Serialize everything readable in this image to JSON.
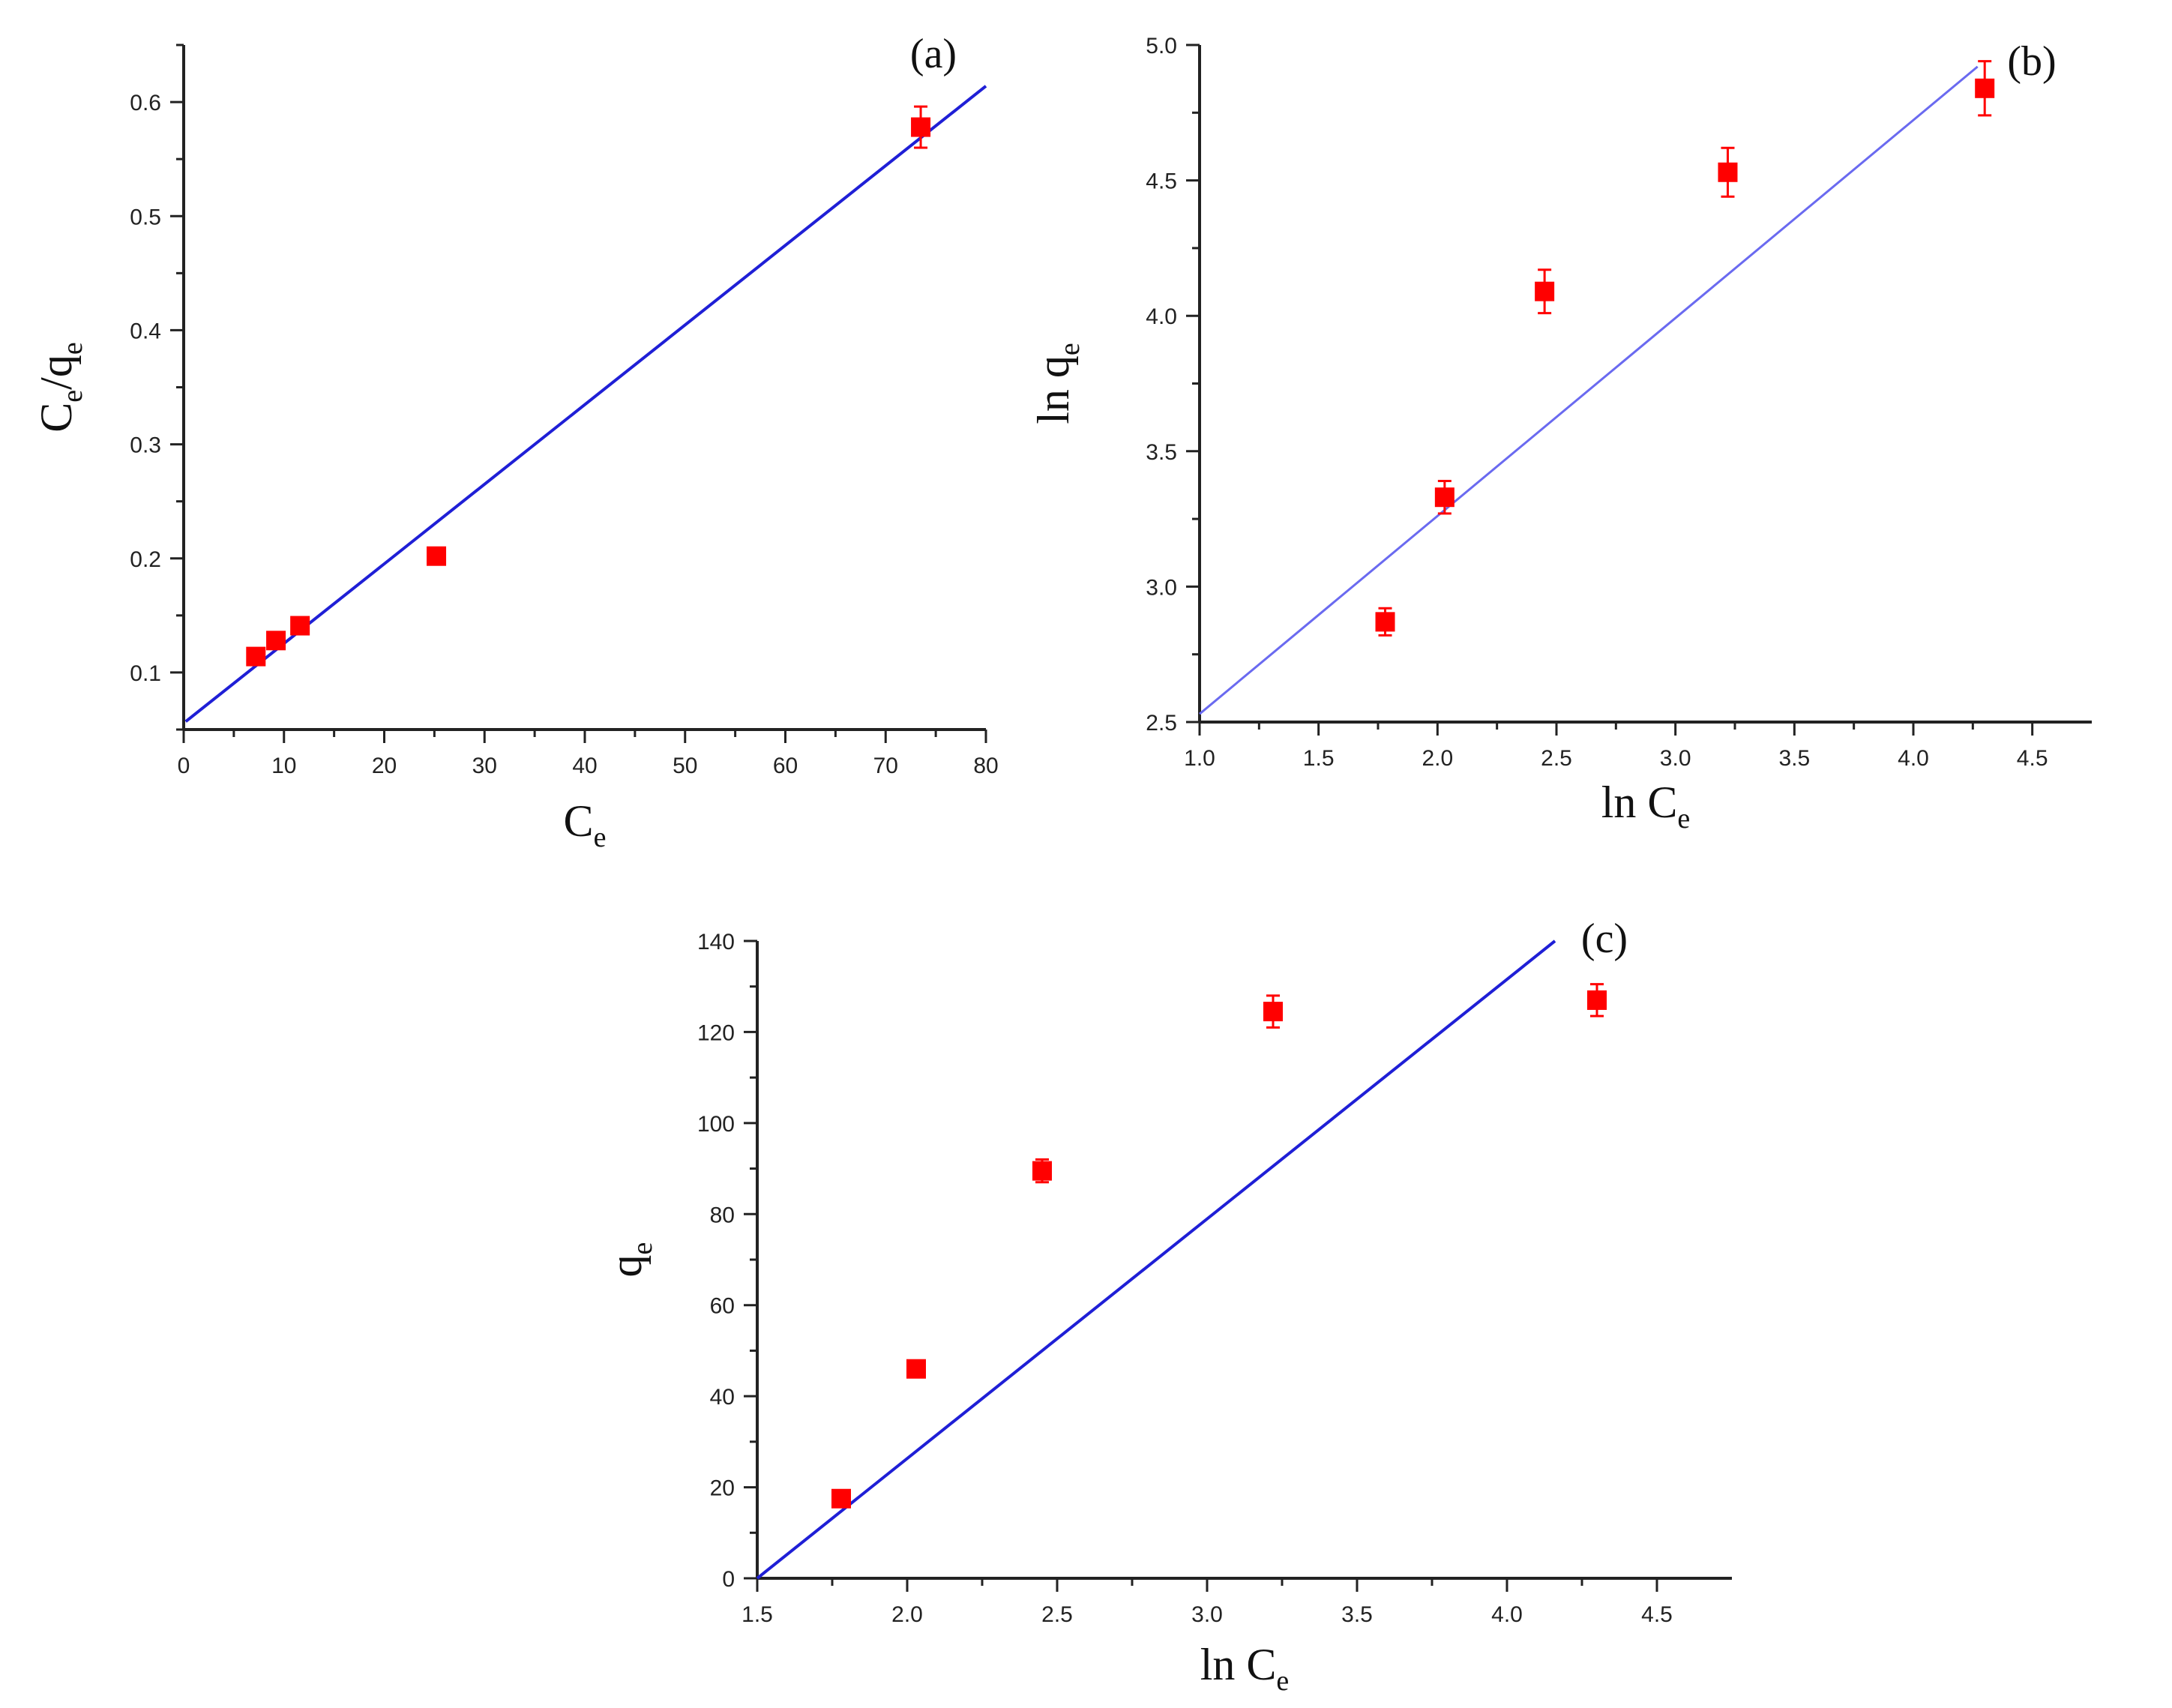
{
  "chart_data": [
    {
      "type": "scatter",
      "panel_label": "(a)",
      "xlabel": {
        "main": "C",
        "sub": "e"
      },
      "ylabel": {
        "parts": [
          {
            "t": "C",
            "sub": "e"
          },
          {
            "t": "/q",
            "sub": "e"
          }
        ]
      },
      "xlim": [
        0,
        80
      ],
      "ylim": [
        0.05,
        0.65
      ],
      "xticks": [
        0,
        10,
        20,
        30,
        40,
        50,
        60,
        70,
        80
      ],
      "xtick_labels": [
        "0",
        "10",
        "20",
        "30",
        "40",
        "50",
        "60",
        "70",
        "80"
      ],
      "yticks": [
        0.1,
        0.2,
        0.3,
        0.4,
        0.5,
        0.6
      ],
      "ytick_labels": [
        "0.1",
        "0.2",
        "0.3",
        "0.4",
        "0.5",
        "0.6"
      ],
      "points": [
        {
          "x": 7.2,
          "y": 0.114,
          "err": 0.006
        },
        {
          "x": 9.2,
          "y": 0.128,
          "err": 0.004
        },
        {
          "x": 11.6,
          "y": 0.141,
          "err": 0.005
        },
        {
          "x": 25.2,
          "y": 0.202,
          "err": 0.004
        },
        {
          "x": 73.5,
          "y": 0.578,
          "err": 0.018
        }
      ],
      "fit_line": {
        "x": [
          0.2,
          80
        ],
        "y": [
          0.057,
          0.614
        ]
      },
      "colors": {
        "points": "#ff0000",
        "line": "#1f1fd6",
        "axes": "#222222"
      },
      "grid": false
    },
    {
      "type": "scatter",
      "panel_label": "(b)",
      "xlabel": {
        "main": "ln C",
        "sub": "e"
      },
      "ylabel": {
        "parts": [
          {
            "t": "ln q",
            "sub": "e"
          }
        ]
      },
      "xlim": [
        1.0,
        4.75
      ],
      "ylim": [
        2.5,
        5.0
      ],
      "xticks": [
        1.0,
        1.5,
        2.0,
        2.5,
        3.0,
        3.5,
        4.0,
        4.5
      ],
      "xtick_labels": [
        "1.0",
        "1.5",
        "2.0",
        "2.5",
        "3.0",
        "3.5",
        "4.0",
        "4.5"
      ],
      "yticks": [
        2.5,
        3.0,
        3.5,
        4.0,
        4.5,
        5.0
      ],
      "ytick_labels": [
        "2.5",
        "3.0",
        "3.5",
        "4.0",
        "4.5",
        "5.0"
      ],
      "points": [
        {
          "x": 1.78,
          "y": 2.87,
          "err": 0.05
        },
        {
          "x": 2.03,
          "y": 3.33,
          "err": 0.06
        },
        {
          "x": 2.45,
          "y": 4.09,
          "err": 0.08
        },
        {
          "x": 3.22,
          "y": 4.53,
          "err": 0.09
        },
        {
          "x": 4.3,
          "y": 4.84,
          "err": 0.1
        }
      ],
      "fit_line": {
        "x": [
          1.0,
          4.27
        ],
        "y": [
          2.53,
          4.92
        ]
      },
      "colors": {
        "points": "#ff0000",
        "line": "#6a6af0",
        "axes": "#222222"
      },
      "grid": false
    },
    {
      "type": "scatter",
      "panel_label": "(c)",
      "xlabel": {
        "main": "ln C",
        "sub": "e"
      },
      "ylabel": {
        "parts": [
          {
            "t": "q",
            "sub": "e"
          }
        ]
      },
      "xlim": [
        1.5,
        4.75
      ],
      "ylim": [
        0,
        140
      ],
      "xticks": [
        1.5,
        2.0,
        2.5,
        3.0,
        3.5,
        4.0,
        4.5
      ],
      "xtick_labels": [
        "1.5",
        "2.0",
        "2.5",
        "3.0",
        "3.5",
        "4.0",
        "4.5"
      ],
      "yticks": [
        0,
        20,
        40,
        60,
        80,
        100,
        120,
        140
      ],
      "ytick_labels": [
        "0",
        "20",
        "40",
        "60",
        "80",
        "100",
        "120",
        "140"
      ],
      "points": [
        {
          "x": 1.78,
          "y": 17.5,
          "err": 1.2
        },
        {
          "x": 2.03,
          "y": 46,
          "err": 1.5
        },
        {
          "x": 2.45,
          "y": 89.5,
          "err": 2.5
        },
        {
          "x": 3.22,
          "y": 124.5,
          "err": 3.5
        },
        {
          "x": 4.3,
          "y": 127,
          "err": 3.5
        }
      ],
      "fit_line": {
        "x": [
          1.5,
          4.16
        ],
        "y": [
          0,
          140
        ]
      },
      "colors": {
        "points": "#ff0000",
        "line": "#1f1fd6",
        "axes": "#222222"
      },
      "grid": false
    }
  ]
}
